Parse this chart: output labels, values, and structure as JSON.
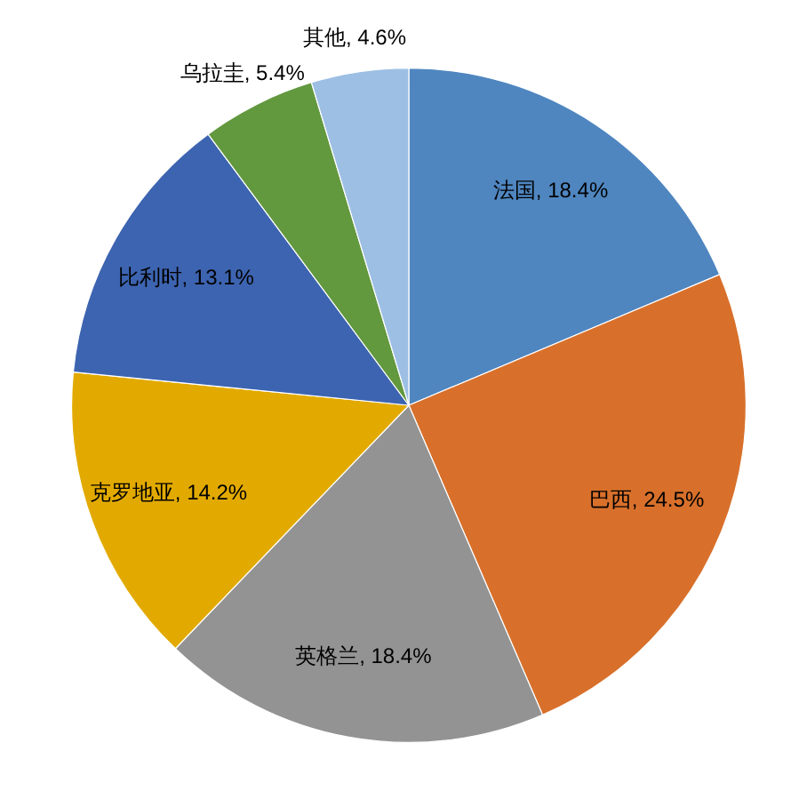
{
  "chart_data": {
    "type": "pie",
    "categories": [
      "法国",
      "巴西",
      "英格兰",
      "克罗地亚",
      "比利时",
      "乌拉圭",
      "其他"
    ],
    "values": [
      18.4,
      24.5,
      18.4,
      14.2,
      13.1,
      5.4,
      4.6
    ],
    "colors": [
      "#4f86c0",
      "#d8702b",
      "#939393",
      "#e2aa00",
      "#3d64b0",
      "#62983e",
      "#9dbfe4"
    ],
    "value_labels": [
      "18.4%",
      "24.5%",
      "18.4%",
      "14.2%",
      "13.1%",
      "5.4%",
      "4.6%"
    ]
  }
}
